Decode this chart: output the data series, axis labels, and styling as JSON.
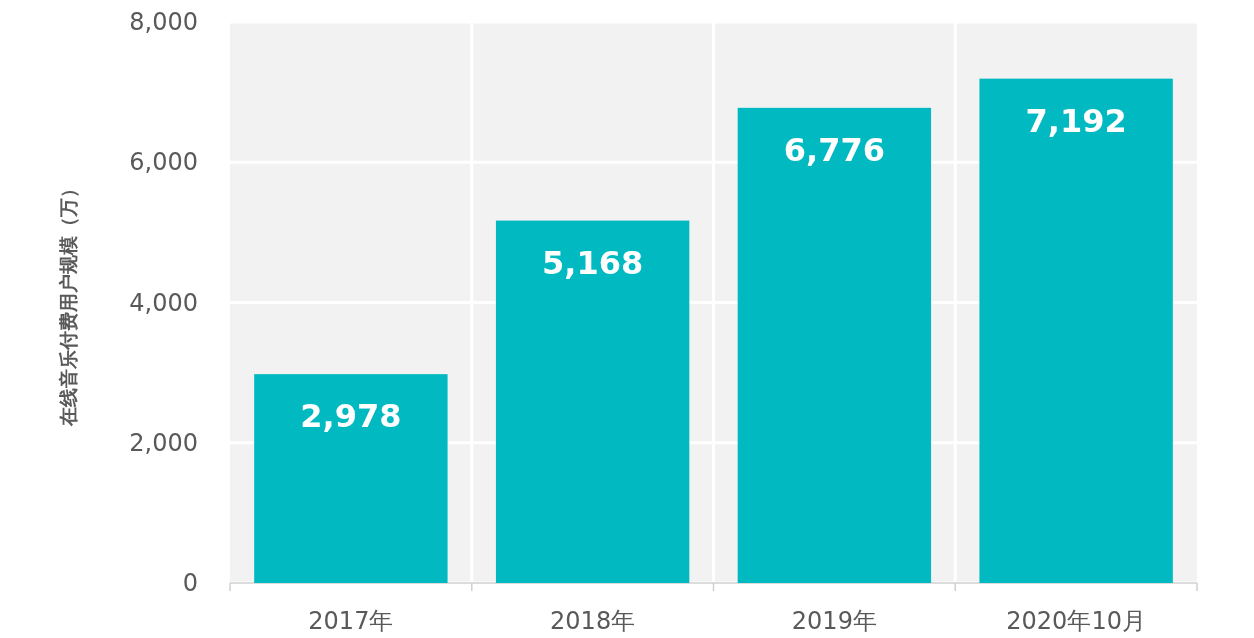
{
  "chart_data": {
    "type": "bar",
    "ylabel": "在线音乐付费用户规模（万）",
    "categories": [
      "2017年",
      "2018年",
      "2019年",
      "2020年10月"
    ],
    "values": [
      2978,
      5168,
      6776,
      7192
    ],
    "color": "#00b9c1",
    "value_labels": [
      "2,978",
      "5,168",
      "6,776",
      "7,192"
    ],
    "ylim": [
      0,
      8000
    ],
    "yticks": [
      0,
      {
        "value": 2000,
        "label": "2,000"
      },
      {
        "value": 4000,
        "label": "4,000"
      },
      {
        "value": 6000,
        "label": "6,000"
      },
      {
        "value": 8000,
        "label": "8,000"
      }
    ],
    "grid": true
  }
}
